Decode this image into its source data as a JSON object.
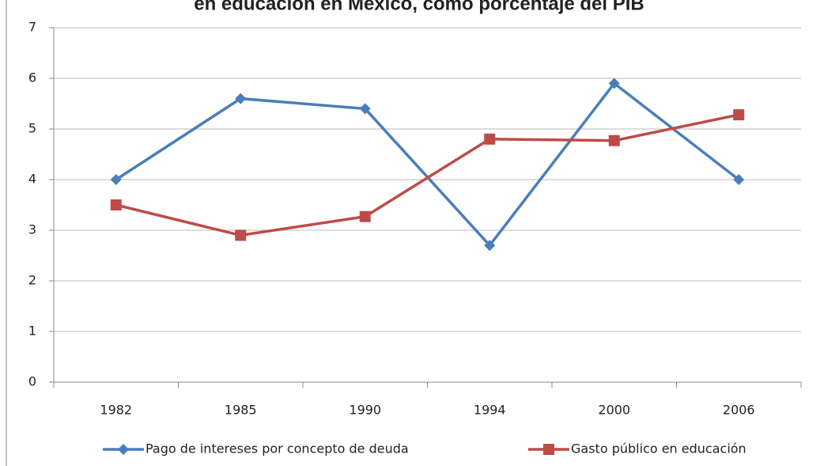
{
  "chart_data": {
    "type": "line",
    "title": "en educación en México, como porcentaje del PIB",
    "categories": [
      "1982",
      "1985",
      "1990",
      "1994",
      "2000",
      "2006"
    ],
    "series": [
      {
        "name": "Pago de intereses por concepto de deuda",
        "color": "#4a7ebb",
        "marker": "diamond",
        "values": [
          4,
          5.6,
          5.4,
          2.7,
          5.9,
          4
        ]
      },
      {
        "name": "Gasto público en educación",
        "color": "#be4b48",
        "marker": "square",
        "values": [
          3.5,
          2.9,
          3.27,
          4.8,
          4.77,
          5.28
        ]
      }
    ],
    "ylim": [
      0,
      7
    ],
    "yticks": [
      0,
      1,
      2,
      3,
      4,
      5,
      6,
      7
    ],
    "grid": true,
    "legend": "bottom"
  }
}
